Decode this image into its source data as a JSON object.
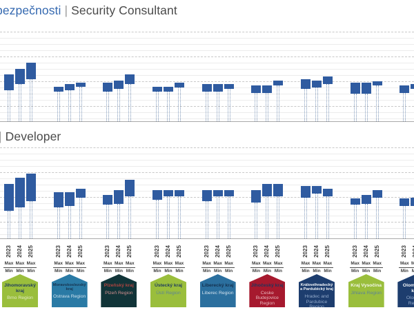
{
  "titles": {
    "chart1": {
      "czech": "bezpečnosti",
      "separator": "|",
      "english": "Security Consultant"
    },
    "chart2": {
      "separator": "|",
      "english": "Developer"
    }
  },
  "chart_data": [
    {
      "type": "bar",
      "variant": "floating min-max range bars per year",
      "title": "bezpečnosti | Security Consultant",
      "xlabel": "",
      "ylabel": "",
      "y_axis_labels_visible": false,
      "years": [
        "2023",
        "2024",
        "2025"
      ],
      "categories": [
        "Jihomoravský kraj",
        "Moravskoslezský kraj",
        "Plzeňský kraj",
        "Ústecký kraj",
        "Liberecký kraj",
        "Jihočeský kraj",
        "Královéhradecký a Pardubický kraj",
        "Kraj Vysočina",
        "Olomoucký kraj"
      ],
      "series": [
        {
          "region": "Jihomoravský kraj",
          "ranges": [
            [
              25,
              38
            ],
            [
              30,
              42
            ],
            [
              34,
              47
            ]
          ]
        },
        {
          "region": "Moravskoslezský kraj",
          "ranges": [
            [
              24,
              28
            ],
            [
              25,
              30
            ],
            [
              28,
              31
            ]
          ]
        },
        {
          "region": "Plzeňský kraj",
          "ranges": [
            [
              24,
              31
            ],
            [
              26,
              33
            ],
            [
              30,
              38
            ]
          ]
        },
        {
          "region": "Ústecký kraj",
          "ranges": [
            [
              24,
              28
            ],
            [
              24,
              28
            ],
            [
              27,
              31
            ]
          ]
        },
        {
          "region": "Liberecký kraj",
          "ranges": [
            [
              24,
              30
            ],
            [
              24,
              30
            ],
            [
              26,
              30
            ]
          ]
        },
        {
          "region": "Jihočeský kraj",
          "ranges": [
            [
              23,
              29
            ],
            [
              23,
              29
            ],
            [
              29,
              33
            ]
          ]
        },
        {
          "region": "Královéhradecký a Pardubický kraj",
          "ranges": [
            [
              26,
              34
            ],
            [
              27,
              33
            ],
            [
              30,
              36
            ]
          ]
        },
        {
          "region": "Kraj Vysočina",
          "ranges": [
            [
              22,
              31
            ],
            [
              22,
              31
            ],
            [
              29,
              32
            ]
          ]
        },
        {
          "region": "Olomoucký kraj",
          "ranges": [
            [
              23,
              29
            ],
            [
              26,
              30
            ],
            null
          ]
        }
      ],
      "ylim": [
        0,
        75
      ],
      "gridlines": {
        "minor_step": 5,
        "major_step": 20,
        "style": "minor solid, major dashed"
      },
      "bar_color": "#2f5ba0"
    },
    {
      "type": "bar",
      "variant": "floating min-max range bars per year",
      "title": "| Developer",
      "xlabel": "",
      "ylabel": "",
      "y_axis_labels_visible": false,
      "years": [
        "2023",
        "2024",
        "2025"
      ],
      "categories": [
        "Jihomoravský kraj",
        "Moravskoslezský kraj",
        "Plzeňský kraj",
        "Ústecký kraj",
        "Liberecký kraj",
        "Jihočeský kraj",
        "Královéhradecký a Pardubický kraj",
        "Kraj Vysočina",
        "Olomoucký kraj"
      ],
      "series": [
        {
          "region": "Jihomoravský kraj",
          "ranges": [
            [
              22,
              44
            ],
            [
              25,
              49
            ],
            [
              30,
              52
            ]
          ]
        },
        {
          "region": "Moravskoslezský kraj",
          "ranges": [
            [
              25,
              37
            ],
            [
              26,
              37
            ],
            [
              33,
              40
            ]
          ]
        },
        {
          "region": "Plzeňský kraj",
          "ranges": [
            [
              27,
              35
            ],
            [
              28,
              39
            ],
            [
              34,
              47
            ]
          ]
        },
        {
          "region": "Ústecký kraj",
          "ranges": [
            [
              31,
              39
            ],
            [
              34,
              39
            ],
            [
              34,
              39
            ]
          ]
        },
        {
          "region": "Liberecký kraj",
          "ranges": [
            [
              30,
              39
            ],
            [
              34,
              39
            ],
            [
              34,
              39
            ]
          ]
        },
        {
          "region": "Jihočeský kraj",
          "ranges": [
            [
              29,
              39
            ],
            [
              34,
              44
            ],
            [
              34,
              44
            ]
          ]
        },
        {
          "region": "Královéhradecký a Pardubický kraj",
          "ranges": [
            [
              33,
              42
            ],
            [
              36,
              42
            ],
            [
              34,
              40
            ]
          ]
        },
        {
          "region": "Kraj Vysočina",
          "ranges": [
            [
              27,
              32
            ],
            [
              28,
              35
            ],
            [
              33,
              39
            ]
          ]
        },
        {
          "region": "Olomoucký kraj",
          "ranges": [
            [
              26,
              32
            ],
            [
              26,
              33
            ],
            null
          ]
        }
      ],
      "ylim": [
        0,
        74
      ],
      "gridlines": {
        "minor_step": 5,
        "major_step": 20,
        "style": "minor solid, major dashed"
      },
      "bar_color": "#2f5ba0"
    }
  ],
  "footer": {
    "year_labels": [
      "2023",
      "2024",
      "2025"
    ],
    "max_label": "Max",
    "min_label": "Min",
    "badges": [
      {
        "name": "Jihomoravský kraj",
        "region": "Brno Region",
        "bg": "#9abe3c",
        "name_color": "#1d3a5e",
        "region_color": "#e3ebc6"
      },
      {
        "name": "Moravskoslezský kraj",
        "region": "Ostrava Region",
        "bg": "#2a7aa5",
        "name_color": "#173450",
        "region_color": "#cfe2ed"
      },
      {
        "name": "Plzeňský kraj",
        "region": "Plzeň Region",
        "bg": "#113438",
        "name_color": "#b04540",
        "region_color": "#d49090"
      },
      {
        "name": "Ústecký kraj",
        "region": "Ústí Region",
        "bg": "#9abe3c",
        "name_color": "#1d3a5e",
        "region_color": "#5d8396"
      },
      {
        "name": "Liberecký kraj",
        "region": "Liberec Region",
        "bg": "#2b6f9e",
        "name_color": "#14304e",
        "region_color": "#d3e2ee"
      },
      {
        "name": "Jihočeský kraj",
        "region": "Ceske Budejovice Region",
        "bg": "#a6192e",
        "name_color": "#22355c",
        "region_color": "#e8b8be"
      },
      {
        "name": "Královéhradecký a Pardubický kraj",
        "region": "Hradec and Pardubice Region",
        "bg": "#1d3d6e",
        "name_color": "#f5f8fb",
        "region_color": "#92a9c9"
      },
      {
        "name": "Kraj Vysočina",
        "region": "Jihlava Region",
        "bg": "#9abe3c",
        "name_color": "#f4f8ec",
        "region_color": "#5d8396"
      },
      {
        "name": "Olomoucký kraj",
        "region": "Olomouc Region",
        "bg": "#1d3d6e",
        "name_color": "#f5f8fb",
        "region_color": "#92a9c9"
      }
    ]
  }
}
